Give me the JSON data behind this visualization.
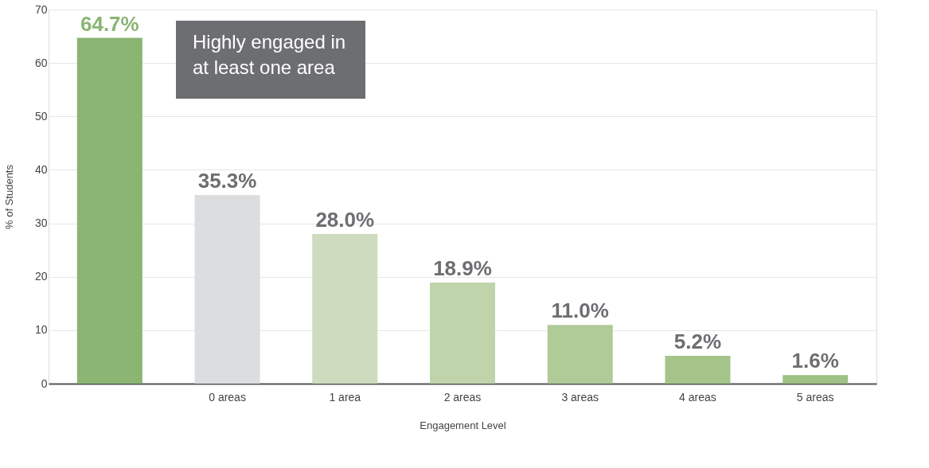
{
  "chart_data": {
    "type": "bar",
    "xlabel": "Engagement Level",
    "ylabel": "% of Students",
    "categories": [
      null,
      "0 areas",
      "1 area",
      "2 areas",
      "3 areas",
      "4 areas",
      "5 areas"
    ],
    "values": [
      64.7,
      35.3,
      28.0,
      18.9,
      11.0,
      5.2,
      1.6
    ],
    "colors": [
      "#8ab573",
      "#dcdddf",
      "#cddbbf",
      "#c0d4ab",
      "#b0ca98",
      "#a4c48a",
      "#a0c185"
    ],
    "value_labels": [
      "64.7%",
      "35.3%",
      "28.0%",
      "18.9%",
      "11.0%",
      "5.2%",
      "1.6%"
    ],
    "annotations": [
      "Highly engaged in\nat least one area"
    ],
    "ylim": [
      0,
      70
    ],
    "yticks": [
      0,
      10,
      20,
      30,
      40,
      50,
      60,
      70
    ],
    "grid": "y"
  }
}
